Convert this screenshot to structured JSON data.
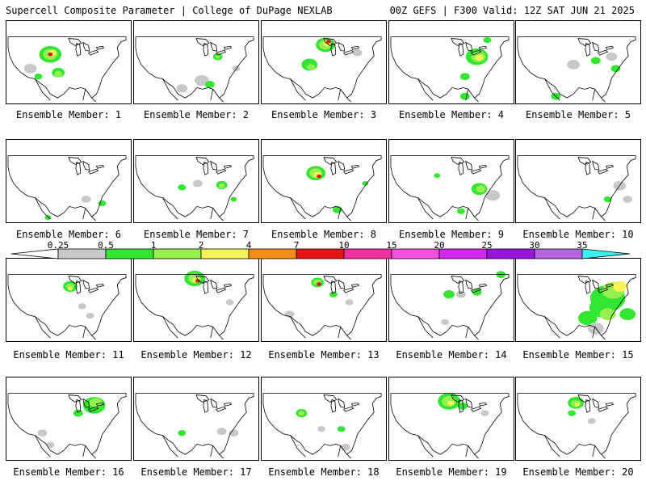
{
  "header": {
    "left": "Supercell Composite Parameter | College of DuPage NEXLAB",
    "right": "00Z GEFS | F300 Valid: 12Z SAT JUN 21 2025"
  },
  "colorbar": {
    "ticks": [
      "0.25",
      "0.5",
      "1",
      "2",
      "4",
      "7",
      "10",
      "15",
      "20",
      "25",
      "30",
      "35"
    ],
    "colors": [
      "#c8c8c8",
      "#32e632",
      "#96f050",
      "#f5f55a",
      "#f58c19",
      "#e61414",
      "#f032a0",
      "#f050dc",
      "#d228f0",
      "#9614dc",
      "#b464dc",
      "#3cf0f0"
    ]
  },
  "members": [
    {
      "label": "Ensemble Member: 1"
    },
    {
      "label": "Ensemble Member: 2"
    },
    {
      "label": "Ensemble Member: 3"
    },
    {
      "label": "Ensemble Member: 4"
    },
    {
      "label": "Ensemble Member: 5"
    },
    {
      "label": "Ensemble Member: 6"
    },
    {
      "label": "Ensemble Member: 7"
    },
    {
      "label": "Ensemble Member: 8"
    },
    {
      "label": "Ensemble Member: 9"
    },
    {
      "label": "Ensemble Member: 10"
    },
    {
      "label": "Ensemble Member: 11"
    },
    {
      "label": "Ensemble Member: 12"
    },
    {
      "label": "Ensemble Member: 13"
    },
    {
      "label": "Ensemble Member: 14"
    },
    {
      "label": "Ensemble Member: 15"
    },
    {
      "label": "Ensemble Member: 16"
    },
    {
      "label": "Ensemble Member: 17"
    },
    {
      "label": "Ensemble Member: 18"
    },
    {
      "label": "Ensemble Member: 19"
    },
    {
      "label": "Ensemble Member: 20"
    }
  ]
}
